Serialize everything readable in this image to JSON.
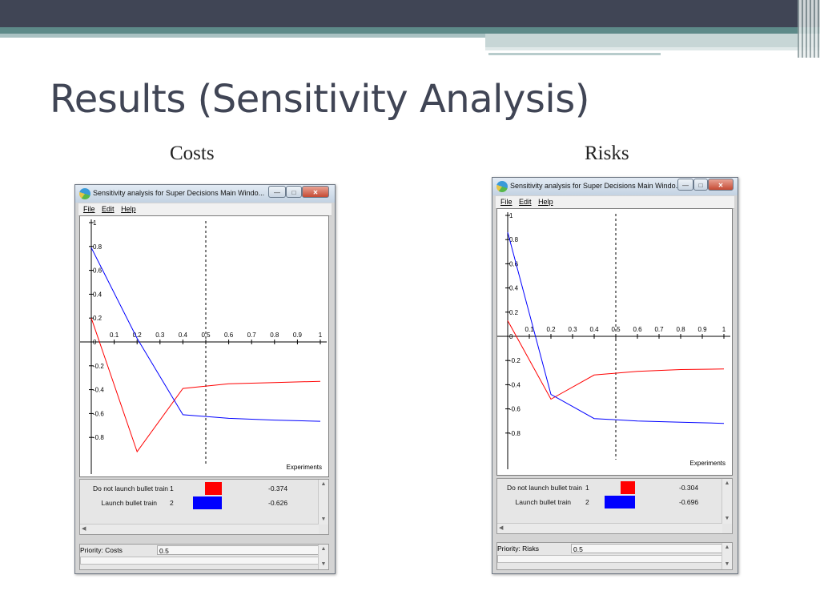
{
  "slide": {
    "title": "Results (Sensitivity Analysis)"
  },
  "panels": [
    {
      "caption": "Costs",
      "window_title": "Sensitivity analysis for Super Decisions Main Windo...",
      "menu": [
        "File",
        "Edit",
        "Help"
      ],
      "window_buttons": [
        "minimize",
        "maximize",
        "close"
      ],
      "results": [
        {
          "name": "Do not launch bullet train",
          "index": "1",
          "value": "-0.374",
          "color": "#ff0000"
        },
        {
          "name": "Launch bullet train",
          "index": "2",
          "value": "-0.626",
          "color": "#0000ff"
        }
      ],
      "priority_label": "Priority: Costs",
      "priority_value": "0.5"
    },
    {
      "caption": "Risks",
      "window_title": "Sensitivity analysis for Super Decisions Main Windo...",
      "menu": [
        "File",
        "Edit",
        "Help"
      ],
      "window_buttons": [
        "minimize",
        "maximize",
        "close"
      ],
      "results": [
        {
          "name": "Do not launch bullet train",
          "index": "1",
          "value": "-0.304",
          "color": "#ff0000"
        },
        {
          "name": "Launch bullet train",
          "index": "2",
          "value": "-0.696",
          "color": "#0000ff"
        }
      ],
      "priority_label": "Priority: Risks",
      "priority_value": "0.5"
    }
  ],
  "chart_data": [
    {
      "type": "line",
      "xlabel": "Experiments",
      "ylabel": "",
      "xlim": [
        0,
        1
      ],
      "ylim": [
        -1,
        1
      ],
      "x_ticks": [
        "0.1",
        "0.2",
        "0.3",
        "0.4",
        "0.5",
        "0.6",
        "0.7",
        "0.8",
        "0.9",
        "1"
      ],
      "y_ticks": [
        "1",
        "0.8",
        "0.6",
        "0.4",
        "0.2",
        "0",
        "-0.2",
        "-0.4",
        "-0.6",
        "-0.8"
      ],
      "marker_x": 0.5,
      "series": [
        {
          "color": "#ff0000",
          "x": [
            0,
            0.2,
            0.4,
            0.6,
            0.8,
            1.0
          ],
          "y": [
            0.2,
            -0.92,
            -0.39,
            -0.35,
            -0.34,
            -0.33
          ]
        },
        {
          "color": "#0000ff",
          "x": [
            0,
            0.2,
            0.4,
            0.6,
            0.8,
            1.0
          ],
          "y": [
            0.79,
            0.03,
            -0.61,
            -0.64,
            -0.655,
            -0.665
          ]
        }
      ]
    },
    {
      "type": "line",
      "xlabel": "Experiments",
      "ylabel": "",
      "xlim": [
        0,
        1
      ],
      "ylim": [
        -1,
        1
      ],
      "x_ticks": [
        "0.1",
        "0.2",
        "0.3",
        "0.4",
        "0.5",
        "0.6",
        "0.7",
        "0.8",
        "0.9",
        "1"
      ],
      "y_ticks": [
        "1",
        "0.8",
        "0.6",
        "0.4",
        "0.2",
        "0",
        "-0.2",
        "-0.4",
        "-0.6",
        "-0.8"
      ],
      "marker_x": 0.5,
      "series": [
        {
          "color": "#ff0000",
          "x": [
            0,
            0.2,
            0.4,
            0.6,
            0.8,
            1.0
          ],
          "y": [
            0.13,
            -0.52,
            -0.32,
            -0.29,
            -0.275,
            -0.27
          ]
        },
        {
          "color": "#0000ff",
          "x": [
            0,
            0.2,
            0.4,
            0.6,
            0.8,
            1.0
          ],
          "y": [
            0.86,
            -0.48,
            -0.68,
            -0.7,
            -0.71,
            -0.72
          ]
        }
      ]
    }
  ]
}
